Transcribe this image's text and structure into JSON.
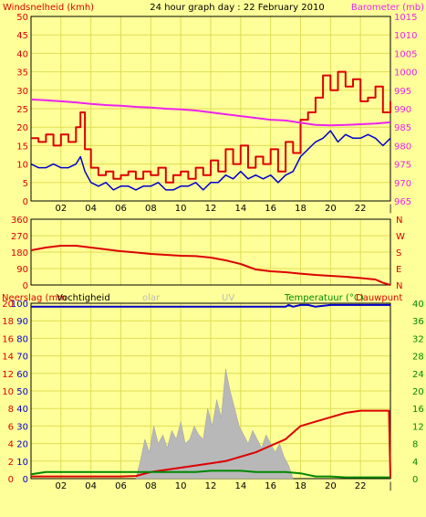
{
  "header": {
    "left_label": "Windsnelheid (kmh)",
    "title": "24 hour graph day : 22 February 2010",
    "right_label": "Barometer (mb)"
  },
  "colors": {
    "background": "#ffff99",
    "grid": "#dddd55",
    "gust": "#dd0000",
    "wind": "#0000cc",
    "pressure": "#ee22ee",
    "direction": "#dd0000",
    "temperature": "#dd0000",
    "dewpoint": "#008800",
    "humidity": "#0000cc",
    "solar": "#b8b8b8",
    "left_axis_text": "#dd0000",
    "right_axis_text": "#ee22ee",
    "bottom_left_text": "#dd0000",
    "bottom_right_text": "#008800"
  },
  "x_ticks": [
    "02",
    "04",
    "06",
    "08",
    "10",
    "12",
    "14",
    "16",
    "18",
    "20",
    "22",
    "|"
  ],
  "chart_data": [
    {
      "type": "line",
      "ylabel": "Windsnelheid (kmh)",
      "y2label": "Barometer (mb)",
      "ylim": [
        0,
        50
      ],
      "y2lim": [
        965,
        1015
      ],
      "yticks": [
        0,
        5,
        10,
        15,
        20,
        25,
        30,
        35,
        40,
        45,
        50
      ],
      "y2ticks": [
        965,
        970,
        975,
        980,
        985,
        990,
        995,
        1000,
        1005,
        1010,
        1015
      ],
      "xlim": [
        0,
        24
      ],
      "series": [
        {
          "name": "gust",
          "axis": "left",
          "x": [
            0,
            0.5,
            1,
            1.5,
            2,
            2.5,
            3,
            3.3,
            3.6,
            4,
            4.5,
            5,
            5.5,
            6,
            6.5,
            7,
            7.5,
            8,
            8.5,
            9,
            9.5,
            10,
            10.5,
            11,
            11.5,
            12,
            12.5,
            13,
            13.5,
            14,
            14.5,
            15,
            15.5,
            16,
            16.5,
            17,
            17.5,
            18,
            18.5,
            19,
            19.5,
            20,
            20.5,
            21,
            21.5,
            22,
            22.5,
            23,
            23.5,
            24
          ],
          "y": [
            17,
            16,
            18,
            15,
            18,
            16,
            20,
            24,
            14,
            9,
            7,
            8,
            6,
            7,
            8,
            6,
            8,
            7,
            9,
            5,
            7,
            8,
            6,
            9,
            7,
            11,
            8,
            14,
            10,
            15,
            9,
            12,
            10,
            14,
            8,
            16,
            13,
            22,
            24,
            28,
            34,
            30,
            35,
            31,
            33,
            27,
            28,
            31,
            24,
            27
          ]
        },
        {
          "name": "wind",
          "axis": "left",
          "x": [
            0,
            0.5,
            1,
            1.5,
            2,
            2.5,
            3,
            3.3,
            3.6,
            4,
            4.5,
            5,
            5.5,
            6,
            6.5,
            7,
            7.5,
            8,
            8.5,
            9,
            9.5,
            10,
            10.5,
            11,
            11.5,
            12,
            12.5,
            13,
            13.5,
            14,
            14.5,
            15,
            15.5,
            16,
            16.5,
            17,
            17.5,
            18,
            18.5,
            19,
            19.5,
            20,
            20.5,
            21,
            21.5,
            22,
            22.5,
            23,
            23.5,
            24
          ],
          "y": [
            10,
            9,
            9,
            10,
            9,
            9,
            10,
            12,
            8,
            5,
            4,
            5,
            3,
            4,
            4,
            3,
            4,
            4,
            5,
            3,
            3,
            4,
            4,
            5,
            3,
            5,
            5,
            7,
            6,
            8,
            6,
            7,
            6,
            7,
            5,
            7,
            8,
            12,
            14,
            16,
            17,
            19,
            16,
            18,
            17,
            17,
            18,
            17,
            15,
            17
          ]
        },
        {
          "name": "pressure",
          "axis": "right",
          "x": [
            0,
            1,
            2,
            3,
            4,
            5,
            6,
            7,
            8,
            9,
            10,
            11,
            12,
            13,
            14,
            15,
            16,
            17,
            18,
            19,
            20,
            21,
            22,
            23,
            24
          ],
          "y": [
            992.5,
            992.3,
            992,
            991.7,
            991.3,
            991,
            990.8,
            990.5,
            990.3,
            990,
            989.8,
            989.5,
            989,
            988.5,
            988,
            987.5,
            987,
            986.8,
            986.2,
            985.6,
            985.5,
            985.6,
            985.8,
            986,
            986.3
          ]
        }
      ]
    },
    {
      "type": "line",
      "ylabel": "N W S E N",
      "ylim": [
        0,
        360
      ],
      "yticks": [
        0,
        90,
        180,
        270,
        360
      ],
      "right_labels": [
        "N",
        "W",
        "S",
        "E",
        "N"
      ],
      "xlim": [
        0,
        24
      ],
      "series": [
        {
          "name": "direction",
          "x": [
            0,
            1,
            2,
            3,
            4,
            5,
            6,
            7,
            8,
            9,
            10,
            11,
            12,
            13,
            14,
            14.5,
            15,
            16,
            17,
            18,
            19,
            20,
            21,
            22,
            23,
            23.5,
            24
          ],
          "y": [
            190,
            205,
            215,
            215,
            205,
            195,
            185,
            178,
            170,
            165,
            160,
            158,
            150,
            135,
            115,
            100,
            85,
            75,
            70,
            62,
            55,
            50,
            45,
            38,
            30,
            12,
            0
          ]
        }
      ]
    },
    {
      "type": "area",
      "left_labels": [
        "Neerslag (mm",
        "Vochtigheid"
      ],
      "faded_labels": [
        "olar",
        "UV"
      ],
      "right_labels": [
        "Temperatuur (°C)",
        "Dauwpunt"
      ],
      "y_left_a": [
        0,
        2,
        4,
        6,
        8,
        10,
        12,
        14,
        16,
        18,
        20
      ],
      "y_left_b": [
        0,
        10,
        20,
        30,
        40,
        50,
        60,
        70,
        80,
        90,
        100
      ],
      "y_right": [
        0,
        4,
        8,
        12,
        16,
        20,
        24,
        28,
        32,
        36,
        40
      ],
      "ylim_right": [
        0,
        40
      ],
      "xlim": [
        0,
        24
      ],
      "series": [
        {
          "name": "temperature",
          "axis": "right",
          "x": [
            0,
            2,
            4,
            6,
            7,
            8,
            9,
            10,
            11,
            12,
            13,
            14,
            15,
            16,
            17,
            18,
            19,
            20,
            21,
            22,
            23,
            23.9,
            24
          ],
          "y": [
            0.5,
            0.5,
            0.5,
            0.5,
            0.6,
            1.5,
            2,
            2.5,
            3,
            3.5,
            4,
            5,
            6,
            7.5,
            9,
            12,
            13,
            14,
            15,
            15.5,
            15.5,
            15.5,
            0
          ]
        },
        {
          "name": "dewpoint",
          "axis": "right",
          "x": [
            0,
            1,
            2,
            3,
            4,
            5,
            6,
            7,
            8,
            9,
            10,
            11,
            12,
            13,
            14,
            15,
            16,
            17,
            18,
            19,
            20,
            21,
            22,
            23,
            24
          ],
          "y": [
            1,
            1.5,
            1.5,
            1.5,
            1.5,
            1.5,
            1.5,
            1.5,
            1.5,
            1.5,
            1.5,
            1.5,
            1.8,
            1.8,
            1.8,
            1.5,
            1.5,
            1.5,
            1.2,
            0.5,
            0.5,
            0.3,
            0.3,
            0.3,
            0.3
          ]
        },
        {
          "name": "humidity",
          "axis": "left_b",
          "x": [
            0,
            2,
            4,
            6,
            8,
            10,
            12,
            14,
            16,
            17,
            17.2,
            17.5,
            18,
            18.5,
            19,
            20,
            21,
            22,
            23,
            24
          ],
          "y": [
            98,
            98,
            98,
            98,
            98,
            98,
            98,
            98,
            98,
            98,
            99,
            98,
            99,
            99,
            98,
            99,
            99,
            99,
            99,
            99
          ]
        },
        {
          "name": "solar",
          "axis": "right",
          "x": [
            7,
            7.3,
            7.6,
            7.9,
            8.2,
            8.5,
            8.8,
            9.1,
            9.4,
            9.7,
            10,
            10.3,
            10.6,
            10.9,
            11.2,
            11.5,
            11.8,
            12.1,
            12.4,
            12.7,
            13,
            13.3,
            13.6,
            13.9,
            14.2,
            14.5,
            14.8,
            15.1,
            15.4,
            15.7,
            16,
            16.3,
            16.6,
            16.9,
            17.2,
            17.5
          ],
          "y": [
            0,
            4,
            9,
            6,
            12,
            8,
            10,
            7,
            11,
            9,
            13,
            8,
            9,
            12,
            10,
            9,
            16,
            12,
            18,
            14,
            25,
            20,
            16,
            12,
            10,
            8,
            11,
            9,
            7,
            10,
            8,
            6,
            8,
            5,
            3,
            0
          ]
        }
      ]
    }
  ]
}
